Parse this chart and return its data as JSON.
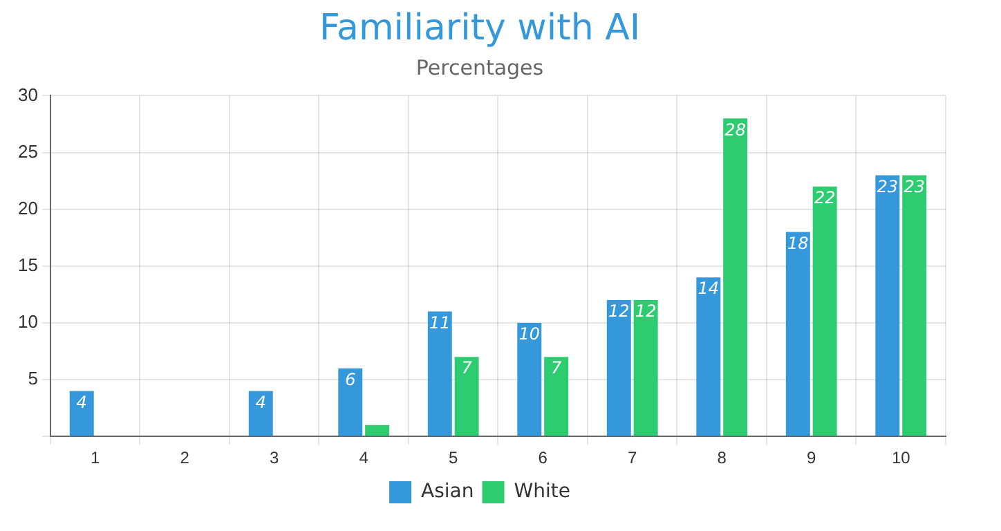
{
  "chart_data": {
    "type": "bar",
    "title": "Familiarity with AI",
    "subtitle": "Percentages",
    "categories": [
      "1",
      "2",
      "3",
      "4",
      "5",
      "6",
      "7",
      "8",
      "9",
      "10"
    ],
    "series": [
      {
        "name": "Asian",
        "color": "#3498db",
        "values": [
          4,
          0,
          4,
          6,
          11,
          10,
          12,
          14,
          18,
          23
        ],
        "value_labels": [
          "4",
          null,
          "4",
          "6",
          "11",
          "10",
          "12",
          "14",
          "18",
          "23"
        ]
      },
      {
        "name": "White",
        "color": "#2ecc71",
        "values": [
          0,
          0,
          0,
          1,
          7,
          7,
          12,
          28,
          22,
          23
        ],
        "value_labels": [
          null,
          null,
          null,
          null,
          "7",
          "7",
          "12",
          "28",
          "22",
          "23"
        ]
      }
    ],
    "ylim": [
      0,
      30
    ],
    "yticks": [
      {
        "value": 0,
        "label": null
      },
      5,
      10,
      15,
      20,
      25,
      30
    ],
    "grid": true,
    "legend": "bottom"
  }
}
